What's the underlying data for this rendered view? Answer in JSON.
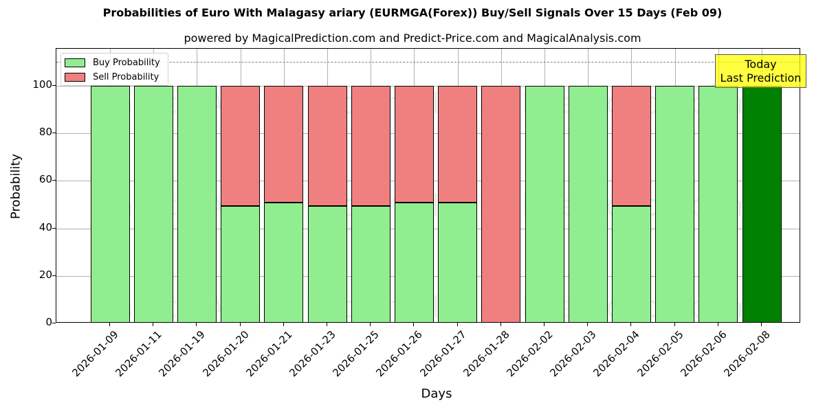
{
  "header": {
    "title": "Probabilities of Euro With Malagasy ariary (EURMGA(Forex)) Buy/Sell Signals Over 15 Days (Feb 09)",
    "subtitle": "powered by MagicalPrediction.com and Predict-Price.com and MagicalAnalysis.com"
  },
  "legend": {
    "buy_label": "Buy Probability",
    "sell_label": "Sell Probability"
  },
  "annotation": {
    "line1": "Today",
    "line2": "Last Prediction"
  },
  "watermarks": [
    "MagicalAnalysis.com",
    "MagicalPrediction.com"
  ],
  "axes": {
    "xlabel": "Days",
    "ylabel": "Probability",
    "yticks": [
      "0",
      "20",
      "40",
      "60",
      "80",
      "100"
    ]
  },
  "colors": {
    "buy": "#90ee90",
    "sell": "#f08080",
    "today": "#008000",
    "annotation_bg": "#ffff00"
  },
  "chart_data": {
    "type": "bar",
    "stacked": true,
    "title": "Probabilities of Euro With Malagasy ariary (EURMGA(Forex)) Buy/Sell Signals Over 15 Days (Feb 09)",
    "subtitle": "powered by MagicalPrediction.com and Predict-Price.com and MagicalAnalysis.com",
    "xlabel": "Days",
    "ylabel": "Probability",
    "ylim": [
      0,
      115
    ],
    "yticks": [
      0,
      20,
      40,
      60,
      80,
      100
    ],
    "grid": true,
    "legend_position": "upper left",
    "reference_line": {
      "y": 110,
      "style": "dashed"
    },
    "categories": [
      "2026-01-09",
      "2026-01-11",
      "2026-01-19",
      "2026-01-20",
      "2026-01-21",
      "2026-01-23",
      "2026-01-25",
      "2026-01-26",
      "2026-01-27",
      "2026-01-28",
      "2026-02-02",
      "2026-02-03",
      "2026-02-04",
      "2026-02-05",
      "2026-02-06",
      "2026-02-08"
    ],
    "series": [
      {
        "name": "Buy Probability",
        "values": [
          100,
          100,
          100,
          49.4,
          50.9,
          49.4,
          49.4,
          50.9,
          50.9,
          0,
          100,
          100,
          49.4,
          100,
          100,
          100
        ]
      },
      {
        "name": "Sell Probability",
        "values": [
          0,
          0,
          0,
          50.6,
          49.1,
          50.6,
          50.6,
          49.1,
          49.1,
          100,
          0,
          0,
          50.6,
          0,
          0,
          0
        ]
      }
    ],
    "annotations": [
      {
        "text": "Today\nLast Prediction",
        "x": "2026-02-08",
        "highlight_color": "#008000"
      }
    ]
  }
}
